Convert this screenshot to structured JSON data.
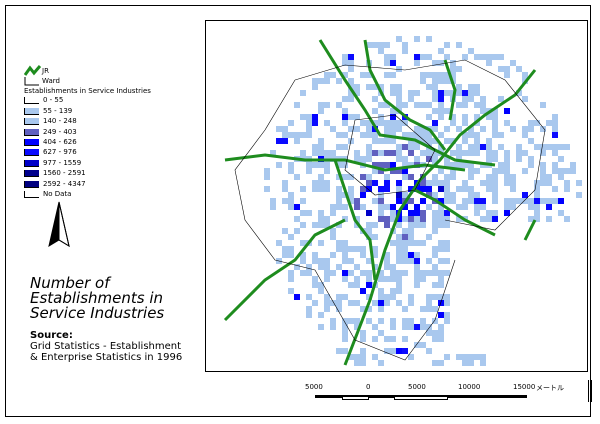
{
  "legend": {
    "jr_label": "JR",
    "ward_label": "Ward",
    "heading": "Establishments in Service Industries",
    "classes": [
      {
        "label": "0 - 55",
        "color": "#ffffff"
      },
      {
        "label": "55 - 139",
        "color": "#a9c8ee"
      },
      {
        "label": "140 - 248",
        "color": "#a9c8ee"
      },
      {
        "label": "249 - 403",
        "color": "#6060c0"
      },
      {
        "label": "404 - 626",
        "color": "#0000ff"
      },
      {
        "label": "627 - 976",
        "color": "#0a0aff"
      },
      {
        "label": "977 - 1559",
        "color": "#0000c8"
      },
      {
        "label": "1560 - 2591",
        "color": "#00008c"
      },
      {
        "label": "2592 - 4347",
        "color": "#000080"
      },
      {
        "label": "No Data",
        "color": "#ffffff"
      }
    ],
    "jr_color": "#1e8c1e"
  },
  "title": {
    "line1": "Number of",
    "line2": "Establishments in",
    "line3": "Service Industries"
  },
  "source": {
    "heading": "Source:",
    "line1": "Grid Statistics - Establishment",
    "line2": "& Enterprise Statistics in 1996"
  },
  "scale_bar": {
    "ticks": [
      "5000",
      "0",
      "5000",
      "10000",
      "15000"
    ],
    "unit": "メートル"
  },
  "north_arrow": "north-arrow-icon"
}
